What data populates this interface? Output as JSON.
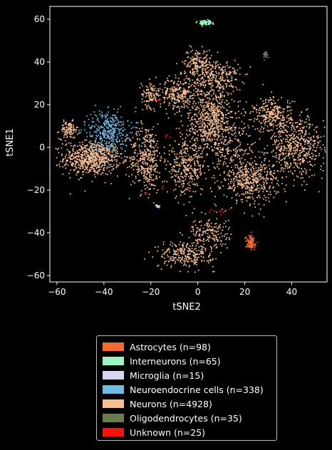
{
  "chart_data": {
    "type": "scatter",
    "xlabel": "tSNE2",
    "ylabel": "tSNE1",
    "xlim": [
      -63,
      55
    ],
    "ylim": [
      -63,
      66
    ],
    "xticks": [
      "−60",
      "−40",
      "−20",
      "0",
      "20",
      "40"
    ],
    "yticks": [
      "−60",
      "−40",
      "−20",
      "0",
      "20",
      "40",
      "60"
    ],
    "xtick_values": [
      -60,
      -40,
      -20,
      0,
      20,
      40
    ],
    "ytick_values": [
      -60,
      -40,
      -20,
      0,
      20,
      40,
      60
    ],
    "legend_position": "below",
    "series": [
      {
        "name": "Astrocytes (n=98)",
        "color": "#f26b32",
        "n": 98,
        "clusters": [
          {
            "cx": 22.5,
            "cy": -44.5,
            "sx": 1.1,
            "sy": 1.6,
            "w": 1
          }
        ]
      },
      {
        "name": "Interneurons (n=65)",
        "color": "#9ef5c4",
        "n": 65,
        "clusters": [
          {
            "cx": 3,
            "cy": 58.5,
            "sx": 1.6,
            "sy": 0.6,
            "w": 1
          }
        ]
      },
      {
        "name": "Microglia (n=15)",
        "color": "#d8d6f0",
        "n": 15,
        "clusters": [
          {
            "cx": -17,
            "cy": -27.5,
            "sx": 0.4,
            "sy": 0.4,
            "w": 1
          }
        ]
      },
      {
        "name": "Neuroendocrine cells (n=338)",
        "color": "#6dbce8",
        "n": 338,
        "clusters": [
          {
            "cx": -38,
            "cy": 8,
            "sx": 4.2,
            "sy": 4.8,
            "w": 1
          }
        ]
      },
      {
        "name": "Neurons (n=4928)",
        "color": "#f5be94",
        "n": 4928,
        "clusters": [
          {
            "cx": -45,
            "cy": -5,
            "sx": 6,
            "sy": 4,
            "w": 0.13
          },
          {
            "cx": -55,
            "cy": 8,
            "sx": 2,
            "sy": 2,
            "w": 0.02
          },
          {
            "cx": -22,
            "cy": -5,
            "sx": 3.5,
            "sy": 8,
            "w": 0.07
          },
          {
            "cx": -20,
            "cy": 25,
            "sx": 2,
            "sy": 3,
            "w": 0.02
          },
          {
            "cx": -8,
            "cy": 25,
            "sx": 4,
            "sy": 4,
            "w": 0.05
          },
          {
            "cx": 0,
            "cy": 40,
            "sx": 3,
            "sy": 3,
            "w": 0.03
          },
          {
            "cx": 8,
            "cy": 33,
            "sx": 5,
            "sy": 4,
            "w": 0.05
          },
          {
            "cx": 6,
            "cy": 12,
            "sx": 6,
            "sy": 8,
            "w": 0.13
          },
          {
            "cx": -5,
            "cy": -10,
            "sx": 4,
            "sy": 6,
            "w": 0.06
          },
          {
            "cx": 22,
            "cy": -15,
            "sx": 6,
            "sy": 5,
            "w": 0.09
          },
          {
            "cx": 32,
            "cy": 15,
            "sx": 4,
            "sy": 4,
            "w": 0.05
          },
          {
            "cx": 42,
            "cy": 0,
            "sx": 6,
            "sy": 7,
            "w": 0.1
          },
          {
            "cx": -5,
            "cy": -50,
            "sx": 6,
            "sy": 3,
            "w": 0.05
          },
          {
            "cx": 5,
            "cy": -40,
            "sx": 4,
            "sy": 4,
            "w": 0.03
          },
          {
            "cx": 15,
            "cy": 0,
            "sx": 5,
            "sy": 6,
            "w": 0.02
          }
        ]
      },
      {
        "name": "Oligodendrocytes (n=35)",
        "color": "#6a7b4f",
        "n": 35,
        "clusters": [
          {
            "cx": 28.8,
            "cy": 43.5,
            "sx": 0.6,
            "sy": 0.8,
            "w": 1
          }
        ]
      },
      {
        "name": "Unknown (n=25)",
        "color": "#ff1010",
        "n": 25,
        "clusters": [
          {
            "cx": 9,
            "cy": -30,
            "sx": 2.5,
            "sy": 0.8,
            "w": 0.45
          },
          {
            "cx": -22,
            "cy": -22,
            "sx": 0.5,
            "sy": 0.5,
            "w": 0.15
          },
          {
            "cx": -17,
            "cy": 22,
            "sx": 1,
            "sy": 0.5,
            "w": 0.12
          },
          {
            "cx": -15,
            "cy": -19,
            "sx": 0.5,
            "sy": 0.5,
            "w": 0.12
          },
          {
            "cx": -14,
            "cy": 5,
            "sx": 1.5,
            "sy": 1,
            "w": 0.16
          }
        ]
      }
    ]
  }
}
